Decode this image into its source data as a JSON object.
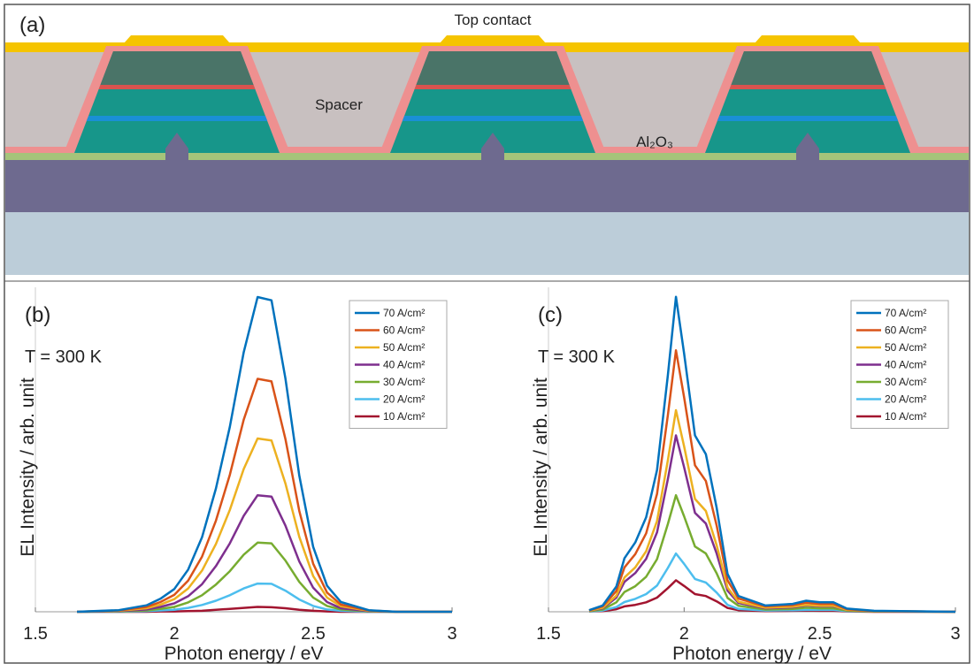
{
  "panel_a": {
    "label": "(a)",
    "top_contact": "Top contact",
    "spacer": "Spacer",
    "oxide": "Al₂O₃"
  },
  "chart_data": [
    {
      "type": "line",
      "label": "(b)",
      "annotation": "T = 300 K",
      "x_label": "Photon energy / eV",
      "y_label": "EL Intensity / arb. unit",
      "xlim": [
        1.5,
        3
      ],
      "xticks": [
        1.5,
        2,
        2.5,
        3
      ],
      "ylim": [
        0,
        1
      ],
      "x": [
        1.65,
        1.8,
        1.9,
        1.95,
        2.0,
        2.05,
        2.1,
        2.15,
        2.2,
        2.25,
        2.3,
        2.35,
        2.4,
        2.45,
        2.5,
        2.55,
        2.6,
        2.7,
        2.8,
        3.0
      ],
      "series": [
        {
          "name": "70 A/cm²",
          "color": "#0072BD",
          "values": [
            0,
            0.005,
            0.02,
            0.04,
            0.07,
            0.13,
            0.23,
            0.38,
            0.57,
            0.8,
            0.97,
            0.96,
            0.72,
            0.42,
            0.2,
            0.08,
            0.03,
            0.005,
            0,
            0
          ]
        },
        {
          "name": "60 A/cm²",
          "color": "#D95319",
          "values": [
            0,
            0.004,
            0.015,
            0.03,
            0.052,
            0.096,
            0.17,
            0.281,
            0.422,
            0.592,
            0.718,
            0.71,
            0.533,
            0.311,
            0.148,
            0.059,
            0.022,
            0.004,
            0,
            0
          ]
        },
        {
          "name": "50 A/cm²",
          "color": "#EDB120",
          "values": [
            0,
            0.003,
            0.011,
            0.022,
            0.039,
            0.072,
            0.127,
            0.209,
            0.314,
            0.44,
            0.534,
            0.528,
            0.396,
            0.231,
            0.11,
            0.044,
            0.017,
            0.003,
            0,
            0
          ]
        },
        {
          "name": "40 A/cm²",
          "color": "#7E2F8E",
          "values": [
            0,
            0.002,
            0.007,
            0.015,
            0.026,
            0.048,
            0.085,
            0.141,
            0.211,
            0.296,
            0.359,
            0.355,
            0.266,
            0.155,
            0.074,
            0.03,
            0.011,
            0.002,
            0,
            0
          ]
        },
        {
          "name": "30 A/cm²",
          "color": "#77AC30",
          "values": [
            0,
            0.001,
            0.004,
            0.009,
            0.015,
            0.029,
            0.051,
            0.084,
            0.125,
            0.176,
            0.213,
            0.211,
            0.158,
            0.092,
            0.044,
            0.018,
            0.007,
            0.001,
            0,
            0
          ]
        },
        {
          "name": "20 A/cm²",
          "color": "#4DBEEE",
          "values": [
            0,
            0,
            0.002,
            0.004,
            0.006,
            0.012,
            0.021,
            0.034,
            0.051,
            0.072,
            0.087,
            0.086,
            0.065,
            0.038,
            0.018,
            0.007,
            0.003,
            0,
            0,
            0
          ]
        },
        {
          "name": "10 A/cm²",
          "color": "#A2142F",
          "values": [
            0,
            0,
            0,
            0.001,
            0.001,
            0.002,
            0.003,
            0.006,
            0.009,
            0.012,
            0.015,
            0.014,
            0.011,
            0.006,
            0.003,
            0.001,
            0,
            0,
            0,
            0
          ]
        }
      ]
    },
    {
      "type": "line",
      "label": "(c)",
      "annotation": "T = 300 K",
      "x_label": "Photon energy / eV",
      "y_label": "EL Intensity / arb. unit",
      "xlim": [
        1.5,
        3
      ],
      "xticks": [
        1.5,
        2,
        2.5,
        3
      ],
      "ylim": [
        0,
        1.03
      ],
      "x": [
        1.65,
        1.7,
        1.75,
        1.78,
        1.82,
        1.86,
        1.9,
        1.94,
        1.97,
        2.0,
        2.04,
        2.08,
        2.12,
        2.16,
        2.2,
        2.3,
        2.4,
        2.45,
        2.5,
        2.55,
        2.6,
        2.7,
        3.0
      ],
      "series": [
        {
          "name": "70 A/cm²",
          "color": "#0072BD",
          "values": [
            0.005,
            0.02,
            0.08,
            0.17,
            0.22,
            0.3,
            0.45,
            0.75,
            1.0,
            0.82,
            0.56,
            0.5,
            0.33,
            0.12,
            0.05,
            0.02,
            0.025,
            0.035,
            0.03,
            0.03,
            0.01,
            0.003,
            0
          ]
        },
        {
          "name": "60 A/cm²",
          "color": "#D95319",
          "values": [
            0.004,
            0.017,
            0.066,
            0.141,
            0.183,
            0.249,
            0.374,
            0.623,
            0.83,
            0.681,
            0.465,
            0.415,
            0.274,
            0.1,
            0.042,
            0.017,
            0.021,
            0.029,
            0.025,
            0.025,
            0.008,
            0.002,
            0
          ]
        },
        {
          "name": "50 A/cm²",
          "color": "#EDB120",
          "values": [
            0.003,
            0.013,
            0.051,
            0.109,
            0.141,
            0.192,
            0.288,
            0.48,
            0.64,
            0.525,
            0.358,
            0.32,
            0.211,
            0.077,
            0.032,
            0.013,
            0.016,
            0.022,
            0.019,
            0.019,
            0.006,
            0.002,
            0
          ]
        },
        {
          "name": "40 A/cm²",
          "color": "#7E2F8E",
          "values": [
            0.003,
            0.011,
            0.045,
            0.095,
            0.123,
            0.168,
            0.252,
            0.42,
            0.56,
            0.459,
            0.314,
            0.28,
            0.185,
            0.067,
            0.028,
            0.011,
            0.014,
            0.02,
            0.017,
            0.017,
            0.006,
            0.002,
            0
          ]
        },
        {
          "name": "30 A/cm²",
          "color": "#77AC30",
          "values": [
            0.002,
            0.007,
            0.03,
            0.063,
            0.081,
            0.111,
            0.167,
            0.278,
            0.37,
            0.303,
            0.207,
            0.185,
            0.122,
            0.044,
            0.019,
            0.007,
            0.009,
            0.013,
            0.011,
            0.011,
            0.004,
            0.001,
            0
          ]
        },
        {
          "name": "20 A/cm²",
          "color": "#4DBEEE",
          "values": [
            0.001,
            0.004,
            0.015,
            0.031,
            0.041,
            0.056,
            0.083,
            0.139,
            0.185,
            0.152,
            0.104,
            0.093,
            0.061,
            0.022,
            0.009,
            0.004,
            0.005,
            0.006,
            0.006,
            0.006,
            0.002,
            0.001,
            0
          ]
        },
        {
          "name": "10 A/cm²",
          "color": "#A2142F",
          "values": [
            0.001,
            0.002,
            0.008,
            0.017,
            0.022,
            0.03,
            0.045,
            0.075,
            0.1,
            0.082,
            0.056,
            0.05,
            0.033,
            0.012,
            0.005,
            0.002,
            0.003,
            0.004,
            0.003,
            0.003,
            0.001,
            0,
            0
          ]
        }
      ]
    }
  ]
}
